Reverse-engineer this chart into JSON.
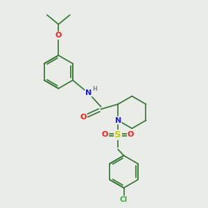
{
  "background_color": "#eaece8",
  "bond_color": "#3a7a3a",
  "atom_colors": {
    "N": "#1818ff",
    "O": "#ff1818",
    "S": "#cccc00",
    "Cl": "#3aaa3a",
    "H": "#888888",
    "C": "#3a7a3a"
  },
  "figsize": [
    3.0,
    3.0
  ],
  "dpi": 100
}
